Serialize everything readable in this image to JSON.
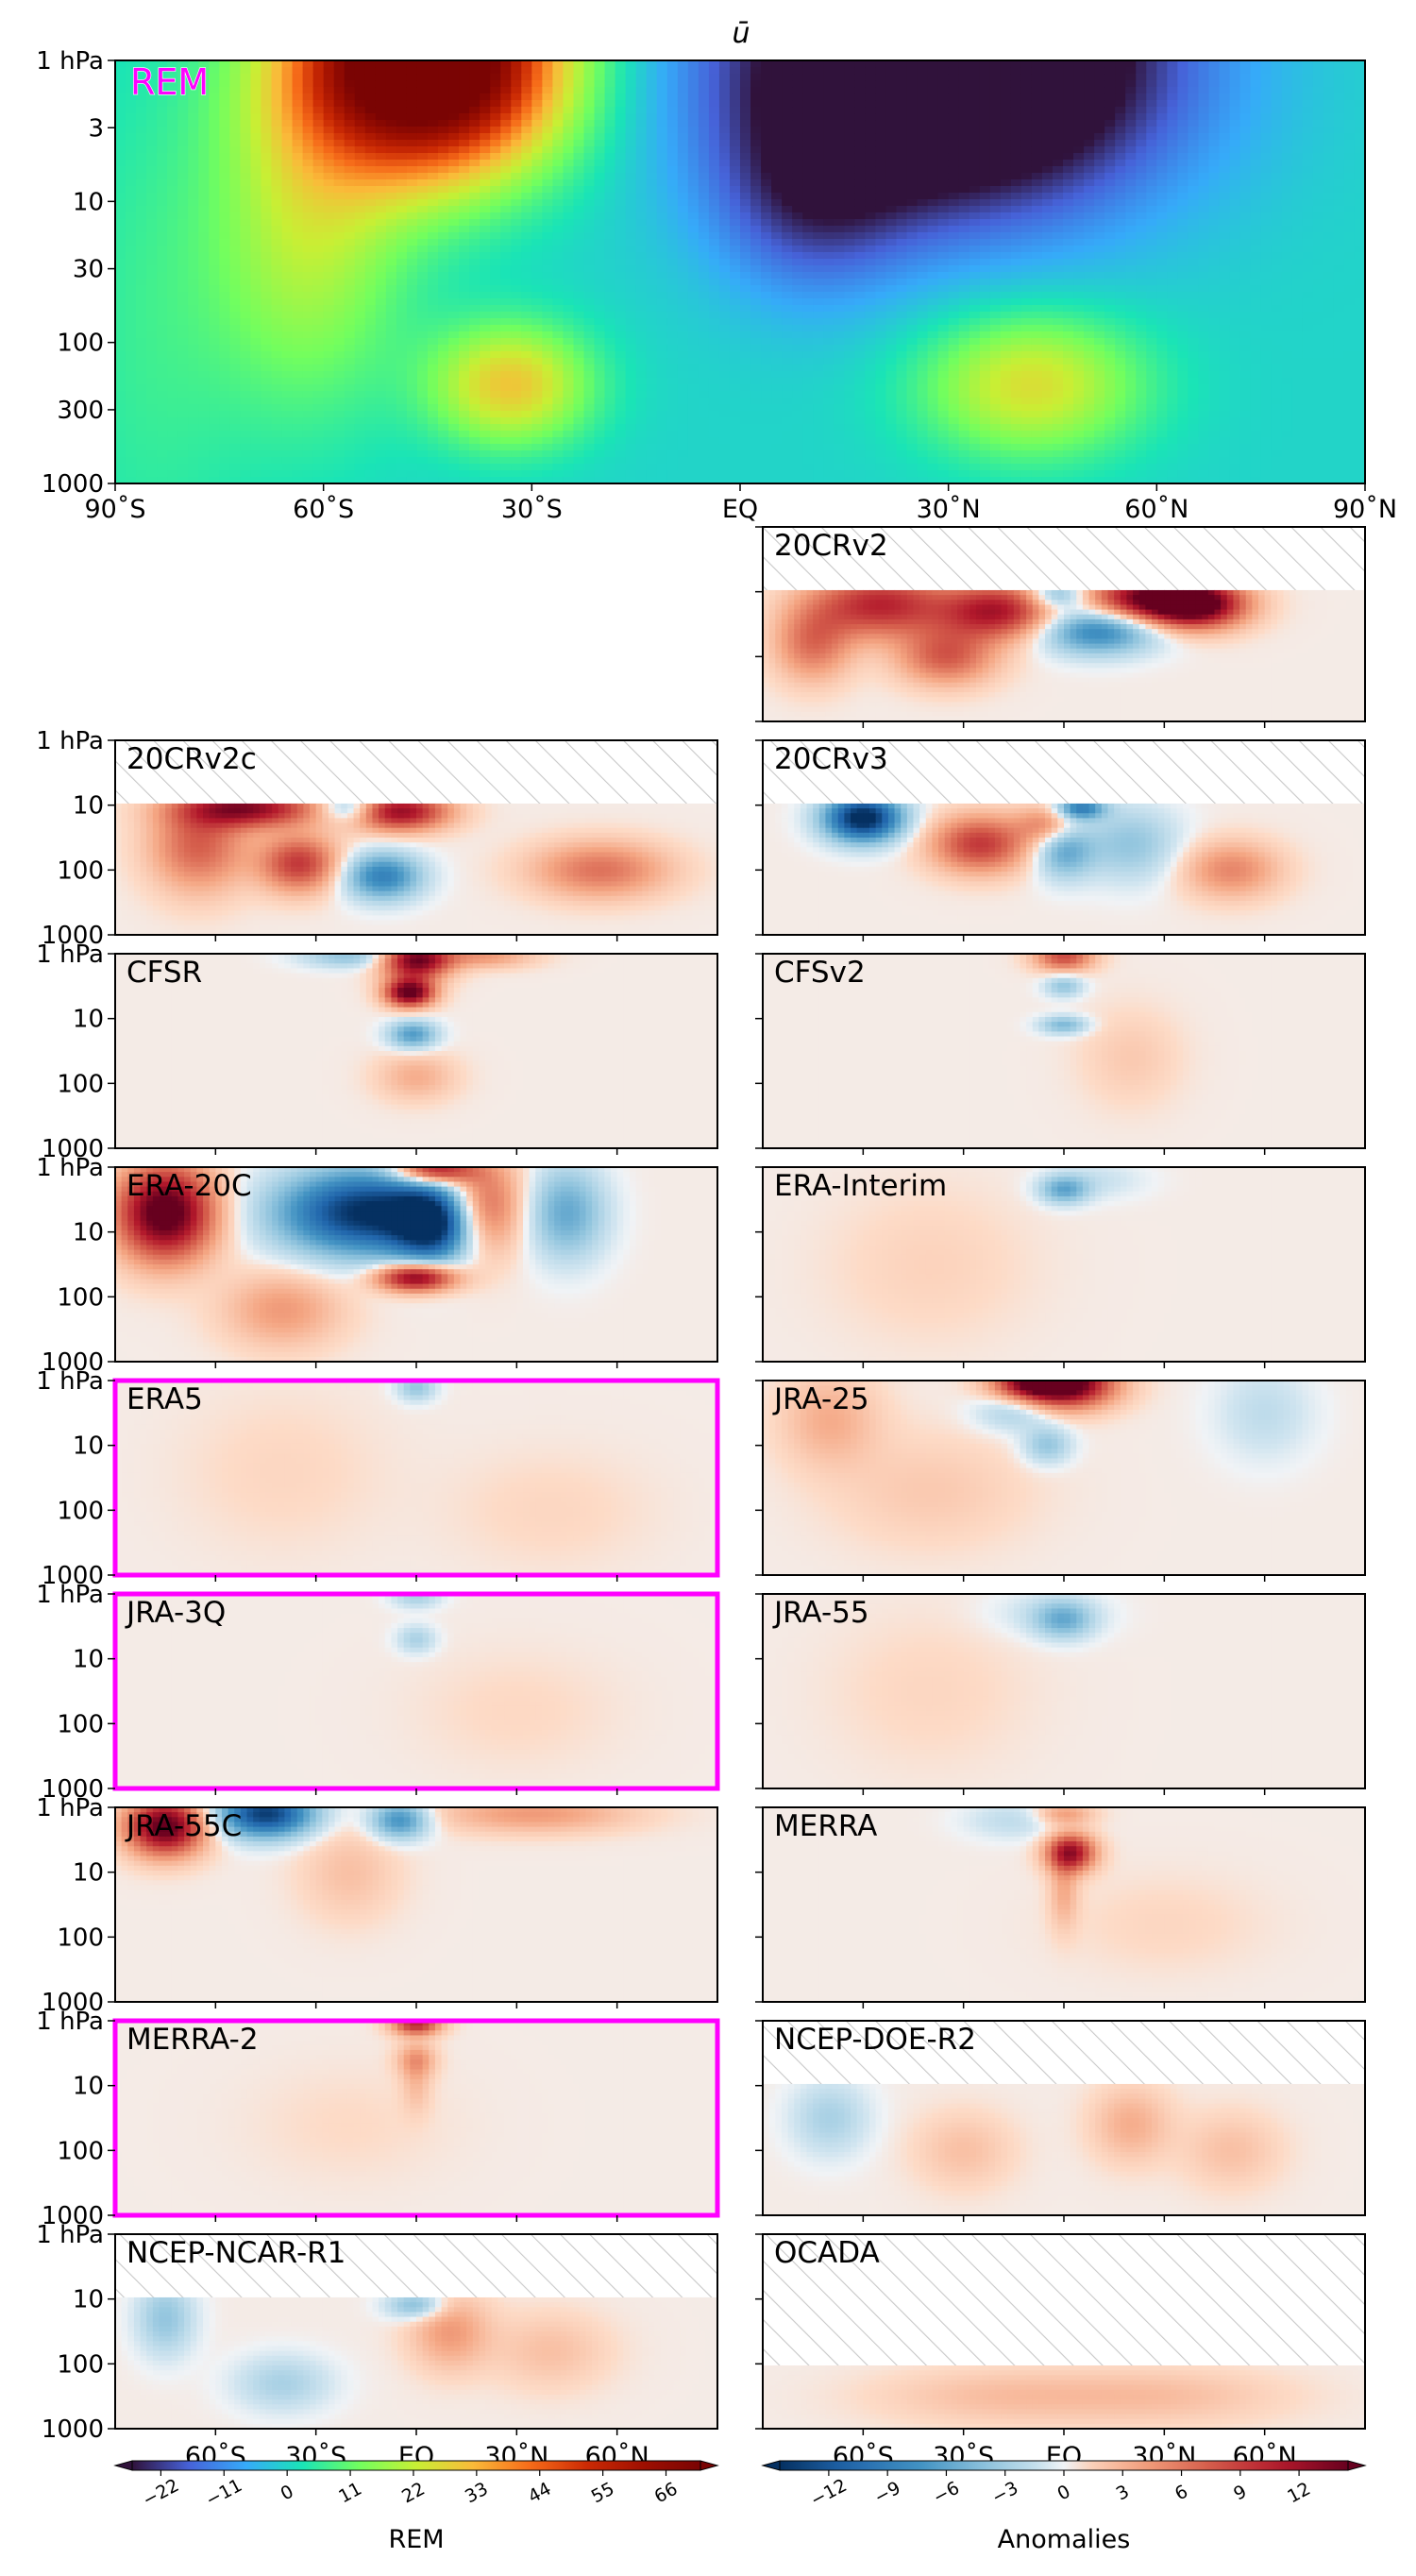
{
  "figure": {
    "title": "ū",
    "main_panel_label": "REM",
    "highlight_color": "#ff00ff"
  },
  "chart_data": [
    {
      "type": "heatmap",
      "name": "REM",
      "label": "REM",
      "variable": "ū",
      "x_range": [
        -90,
        90
      ],
      "x_ticks": [
        -90,
        -60,
        -30,
        0,
        30,
        60,
        90
      ],
      "x_tick_labels": [
        "90˚S",
        "60˚S",
        "30˚S",
        "EQ",
        "30˚N",
        "60˚N",
        "90˚N"
      ],
      "y_scale": "log",
      "y_range_hPa": [
        1000,
        1
      ],
      "y_ticks": [
        1,
        3,
        10,
        30,
        100,
        300,
        1000
      ],
      "y_tick_labels": [
        "1 hPa",
        "3",
        "10",
        "30",
        "100",
        "300",
        "1000"
      ],
      "colormap": "turbo",
      "features": [
        {
          "kind": "westerly jet max",
          "lat": -50,
          "p_hPa": 3,
          "value": 70
        },
        {
          "kind": "easterly min",
          "lat": 30,
          "p_hPa": 1,
          "value": -25
        },
        {
          "kind": "subtropical jet",
          "lat": -30,
          "p_hPa": 200,
          "value": 35
        },
        {
          "kind": "subtropical jet",
          "lat": 40,
          "p_hPa": 200,
          "value": 28
        }
      ]
    },
    {
      "type": "heatmap",
      "panels": [
        {
          "label": "20CRv2",
          "highlight": false,
          "top_hPa": 10,
          "strength": "strong"
        },
        {
          "label": "20CRv2c",
          "highlight": false,
          "top_hPa": 10,
          "strength": "strong"
        },
        {
          "label": "20CRv3",
          "highlight": false,
          "top_hPa": 10,
          "strength": "strong"
        },
        {
          "label": "CFSR",
          "highlight": false,
          "top_hPa": 1,
          "strength": "moderate"
        },
        {
          "label": "CFSv2",
          "highlight": false,
          "top_hPa": 1,
          "strength": "weak"
        },
        {
          "label": "ERA-20C",
          "highlight": false,
          "top_hPa": 1,
          "strength": "strong"
        },
        {
          "label": "ERA-Interim",
          "highlight": false,
          "top_hPa": 1,
          "strength": "weak"
        },
        {
          "label": "ERA5",
          "highlight": true,
          "top_hPa": 1,
          "strength": "weak"
        },
        {
          "label": "JRA-25",
          "highlight": false,
          "top_hPa": 1,
          "strength": "moderate"
        },
        {
          "label": "JRA-3Q",
          "highlight": true,
          "top_hPa": 1,
          "strength": "weak"
        },
        {
          "label": "JRA-55",
          "highlight": false,
          "top_hPa": 1,
          "strength": "weak"
        },
        {
          "label": "JRA-55C",
          "highlight": false,
          "top_hPa": 1,
          "strength": "moderate"
        },
        {
          "label": "MERRA",
          "highlight": false,
          "top_hPa": 1,
          "strength": "weak"
        },
        {
          "label": "MERRA-2",
          "highlight": true,
          "top_hPa": 1,
          "strength": "weak"
        },
        {
          "label": "NCEP-DOE-R2",
          "highlight": false,
          "top_hPa": 10,
          "strength": "weak"
        },
        {
          "label": "NCEP-NCAR-R1",
          "highlight": false,
          "top_hPa": 10,
          "strength": "weak"
        },
        {
          "label": "OCADA",
          "highlight": false,
          "top_hPa": 100,
          "strength": "weak"
        }
      ],
      "y_tick_labels": [
        "1 hPa",
        "10",
        "100",
        "1000"
      ],
      "x_tick_labels": [
        "60˚S",
        "30˚S",
        "EQ",
        "30˚N",
        "60˚N"
      ]
    }
  ],
  "colorbars": {
    "rem": {
      "label": "REM",
      "colormap": "turbo",
      "range": [
        -27,
        72
      ],
      "ticks": [
        "−22",
        "−11",
        "0",
        "11",
        "22",
        "33",
        "44",
        "55",
        "66"
      ]
    },
    "anomalies": {
      "label": "Anomalies",
      "colormap": "RdBu_r",
      "range": [
        -14.5,
        14.5
      ],
      "ticks": [
        "−12",
        "−9",
        "−6",
        "−3",
        "0",
        "3",
        "6",
        "9",
        "12"
      ]
    }
  }
}
